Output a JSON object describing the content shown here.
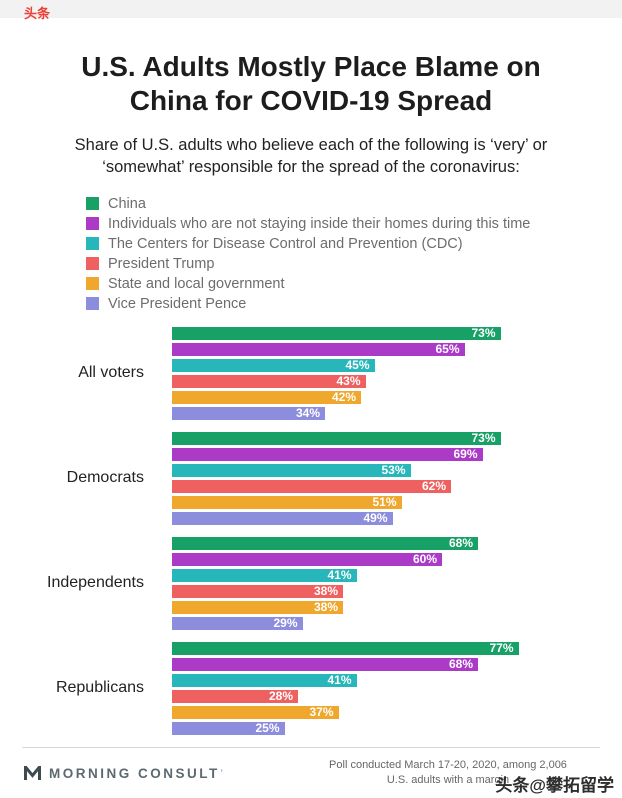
{
  "watermark_top": "头条",
  "title": "U.S. Adults Mostly Place Blame on China for COVID-19 Spread",
  "subtitle": "Share of U.S. adults who believe each of the following is ‘very’ or ‘somewhat’ responsible for the spread of the coronavirus:",
  "chart_data": {
    "type": "bar",
    "orientation": "horizontal",
    "title": "U.S. Adults Mostly Place Blame on China for COVID-19 Spread",
    "categories": [
      "All voters",
      "Democrats",
      "Independents",
      "Republicans"
    ],
    "series": [
      {
        "name": "China",
        "color": "#17A166",
        "values": [
          73,
          73,
          68,
          77
        ]
      },
      {
        "name": "Individuals who are not staying inside their homes during this time",
        "color": "#AB3BC7",
        "values": [
          65,
          69,
          60,
          68
        ]
      },
      {
        "name": "The Centers for Disease Control and Prevention (CDC)",
        "color": "#27B6BA",
        "values": [
          45,
          53,
          41,
          41
        ]
      },
      {
        "name": "President Trump",
        "color": "#EF6161",
        "values": [
          43,
          62,
          38,
          28
        ]
      },
      {
        "name": "State and local government",
        "color": "#EFA72E",
        "values": [
          42,
          51,
          38,
          37
        ]
      },
      {
        "name": "Vice President Pence",
        "color": "#8D8DDD",
        "values": [
          34,
          49,
          29,
          25
        ]
      }
    ],
    "value_suffix": "%",
    "xlim": [
      0,
      80
    ],
    "grid": false,
    "legend_position": "top-left",
    "value_labels": "inside-end-white"
  },
  "footer": {
    "brand": "MORNING CONSULT",
    "brand_mark": "’",
    "note_line1": "Poll conducted March 17-20, 2020, among 2,006",
    "note_line2": "U.S. adults with a margin"
  },
  "watermark_bottom": "头条@攀拓留学"
}
